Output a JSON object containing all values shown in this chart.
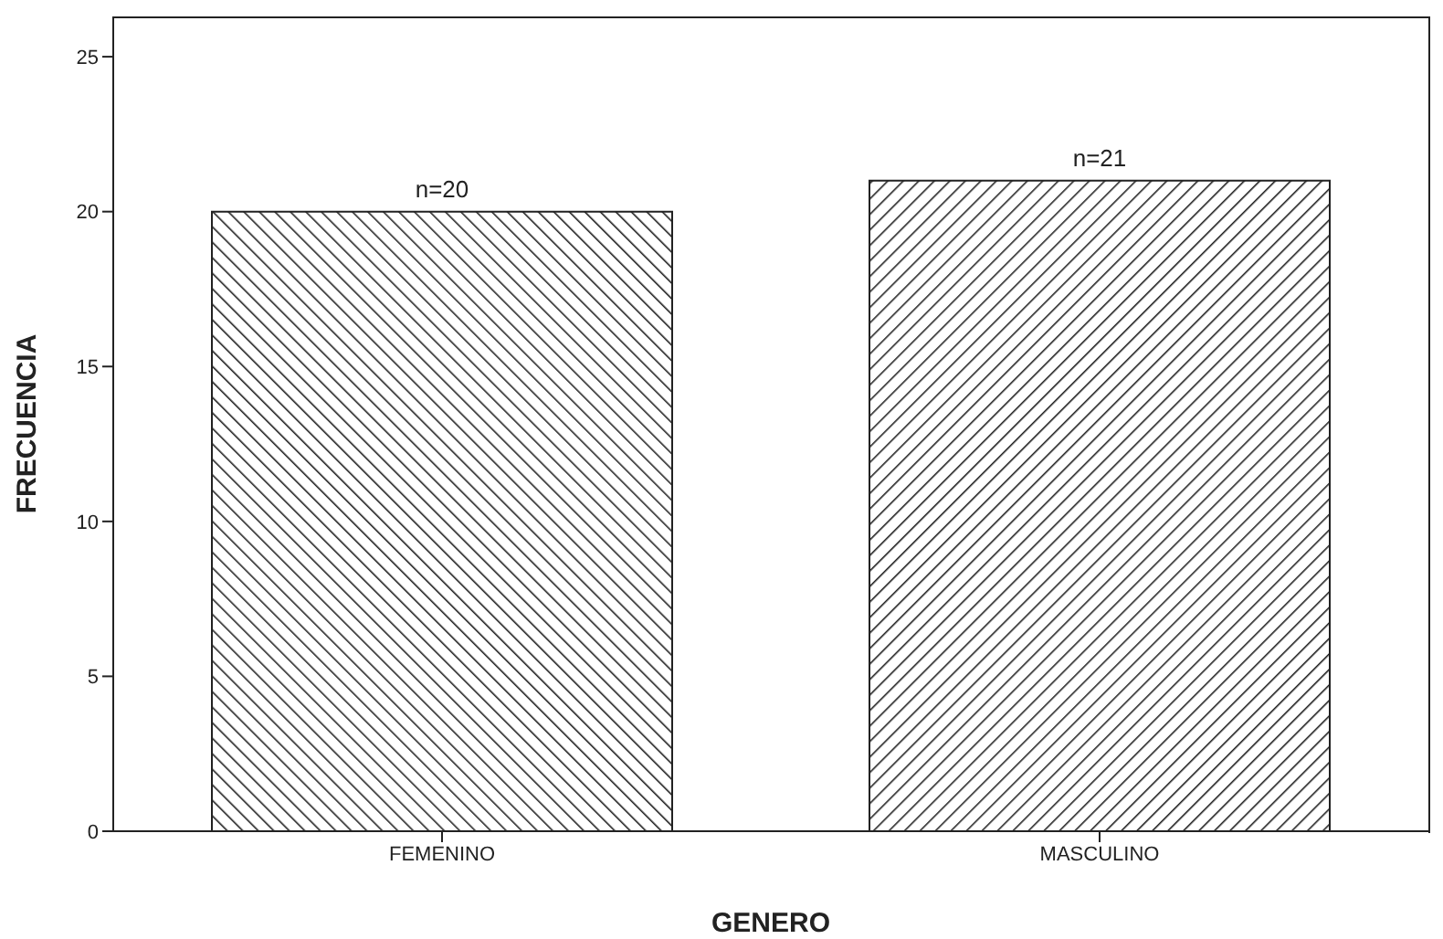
{
  "chart_data": {
    "type": "bar",
    "xlabel": "GENERO",
    "ylabel": "FRECUENCIA",
    "categories": [
      "FEMENINO",
      "MASCULINO"
    ],
    "values": [
      20,
      21
    ],
    "value_labels": [
      "n=20",
      "n=21"
    ],
    "color": "#222222",
    "ylim": [
      0,
      26.3
    ],
    "yticks": [
      0,
      5,
      10,
      15,
      20,
      25
    ],
    "grid": false
  }
}
